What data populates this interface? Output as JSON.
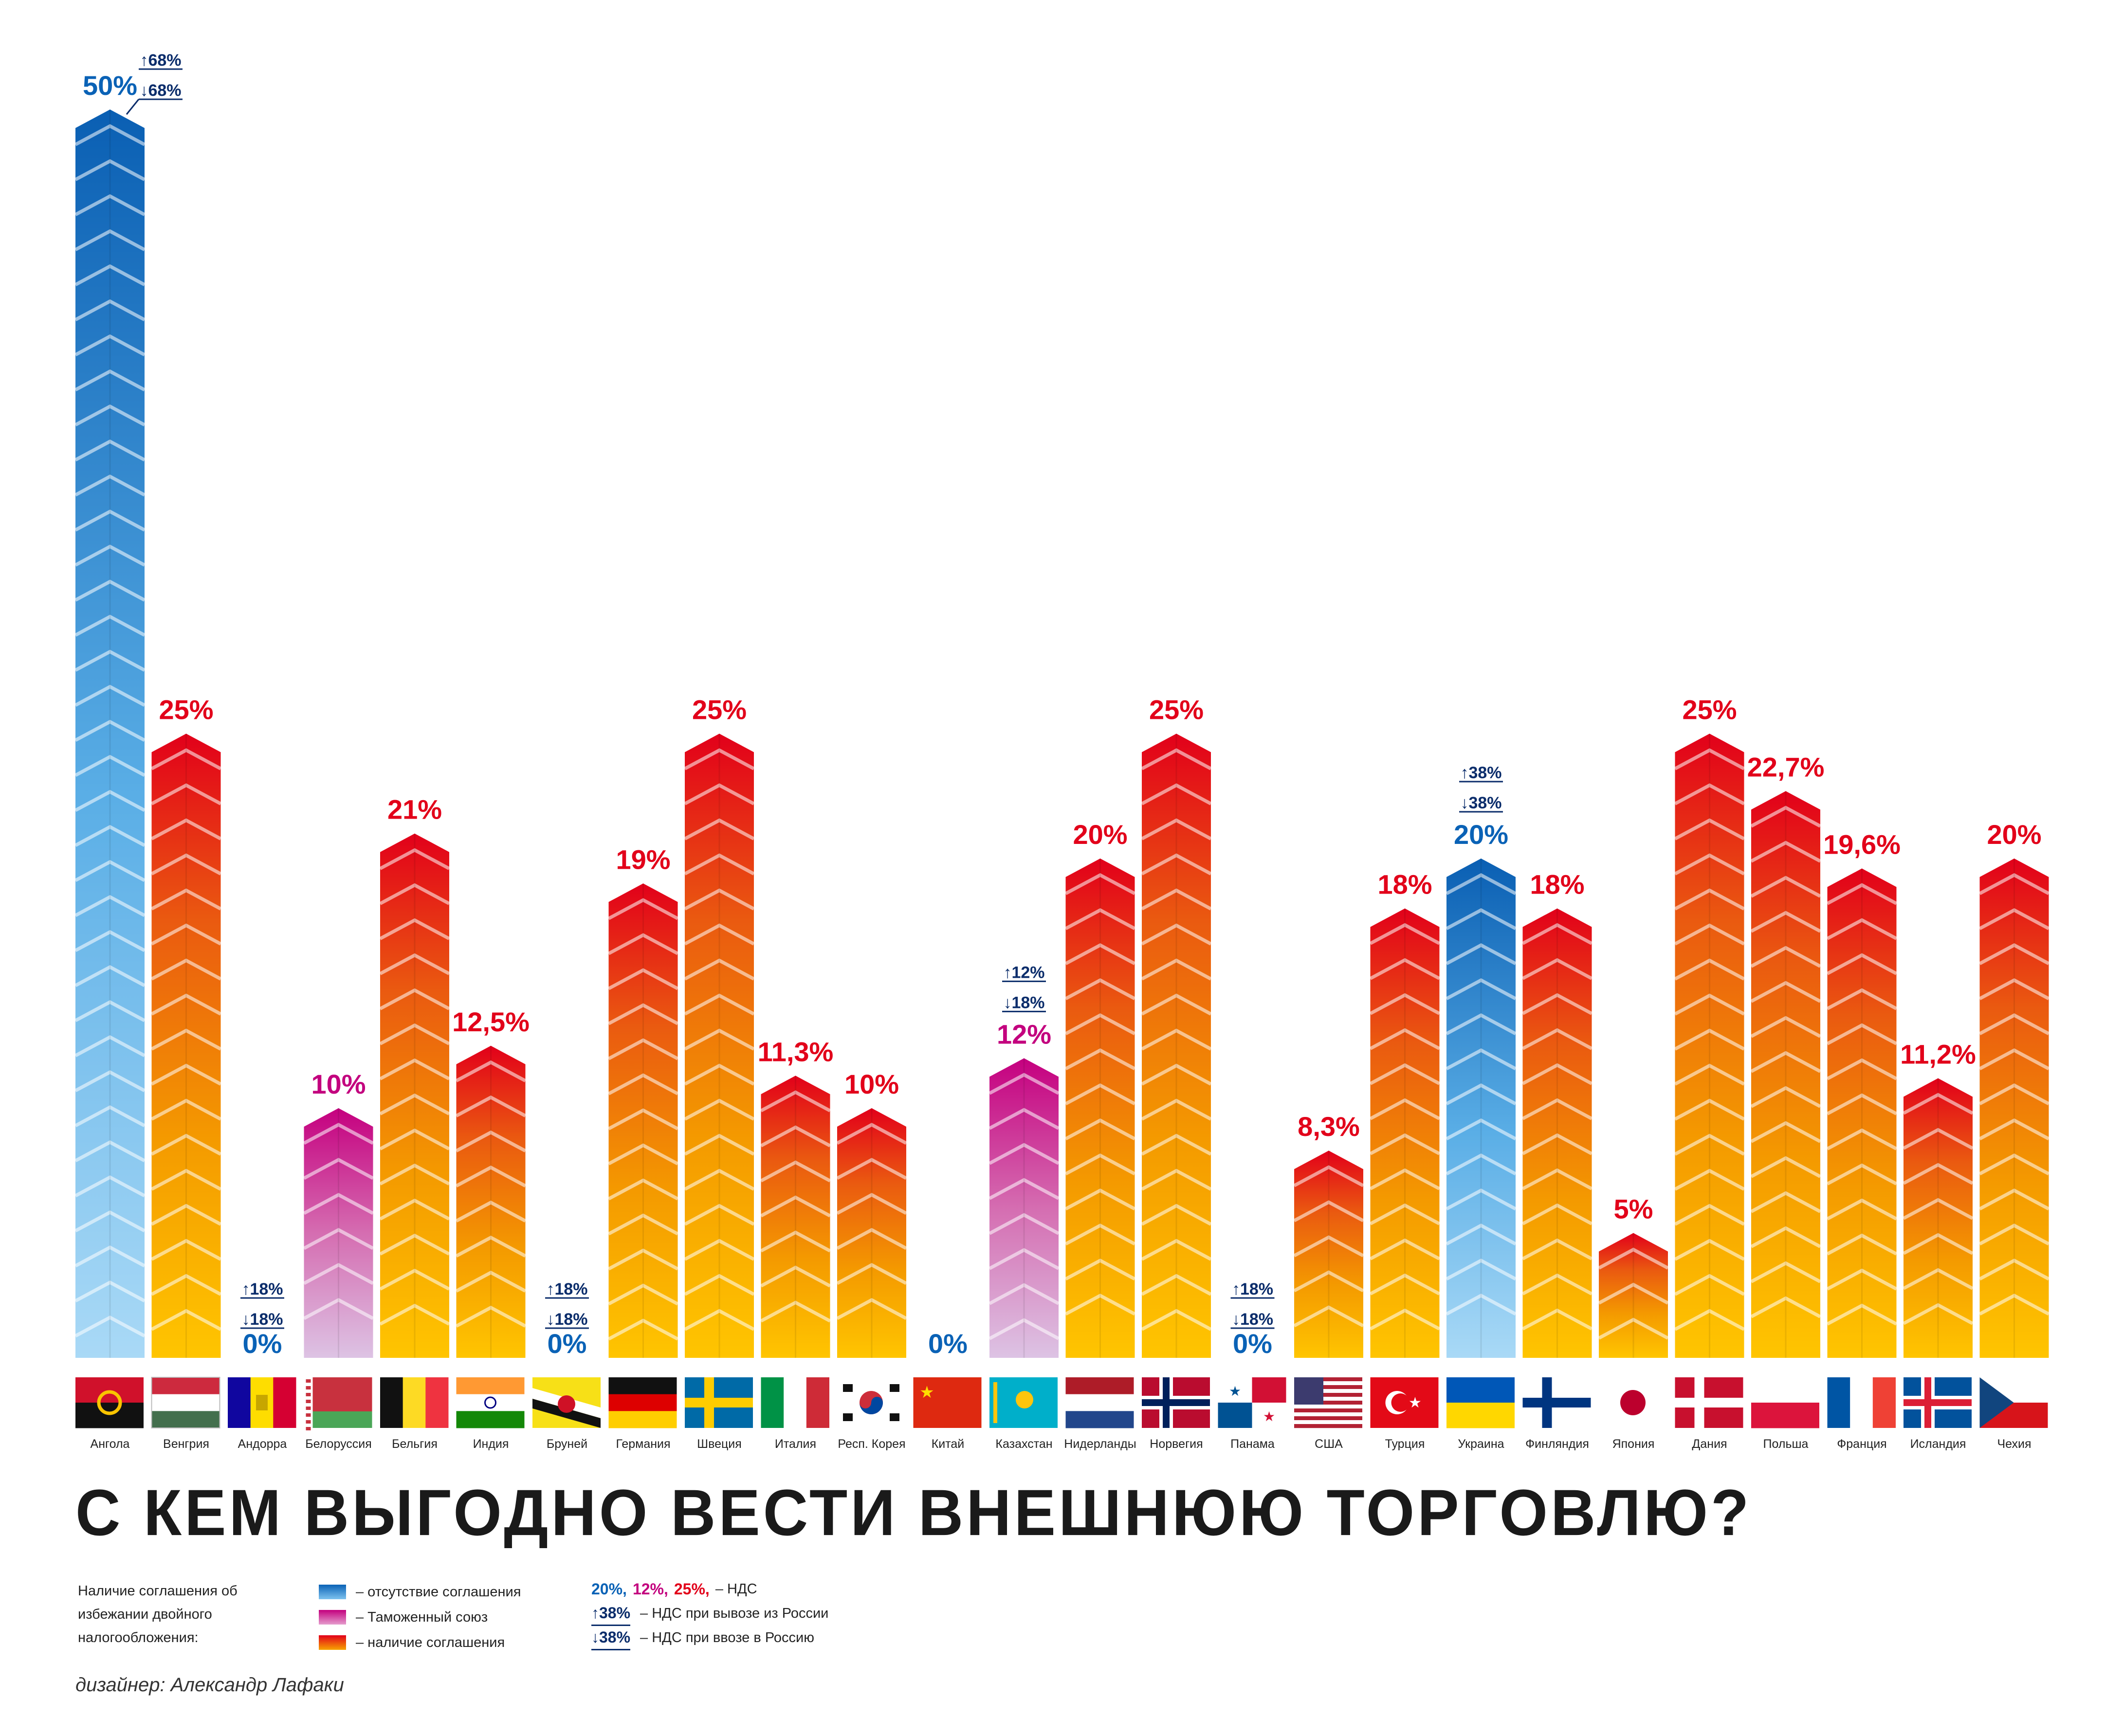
{
  "title": "С КЕМ ВЫГОДНО ВЕСТИ ВНЕШНЮЮ ТОРГОВЛЮ?",
  "designer": "дизайнер: Александр Лафаки",
  "legend": {
    "intro": "Наличие соглашения об избежании двойного налогообложения:",
    "types": [
      {
        "key": "none",
        "label": "– отсутствие соглашения",
        "color": "#0a62b6"
      },
      {
        "key": "union",
        "label": "– Таможенный союз",
        "color": "#c3007e"
      },
      {
        "key": "agreement",
        "label": "– наличие соглашения",
        "color": "#e2001a"
      }
    ],
    "vat_samples": [
      "20%,",
      "12%,",
      "25%,"
    ],
    "vat_label": "– НДС",
    "export_sample": "38%",
    "export_label": "– НДС при вывозе из России",
    "import_sample": "38%",
    "import_label": "– НДС при ввозе в Россию"
  },
  "chart_data": {
    "type": "bar",
    "title": "С КЕМ ВЫГОДНО ВЕСТИ ВНЕШНЮЮ ТОРГОВЛЮ?",
    "ylim": [
      0,
      50
    ],
    "unit": "%",
    "categories": [
      "Ангола",
      "Венгрия",
      "Андорра",
      "Белоруссия",
      "Бельгия",
      "Индия",
      "Бруней",
      "Германия",
      "Швеция",
      "Италия",
      "Респ. Корея",
      "Китай",
      "Казахстан",
      "Нидерланды",
      "Норвегия",
      "Панама",
      "США",
      "Турция",
      "Украина",
      "Финляндия",
      "Япония",
      "Дания",
      "Польша",
      "Франция",
      "Исландия",
      "Чехия"
    ],
    "values": [
      50,
      25,
      0,
      10,
      21,
      12.5,
      0,
      19,
      25,
      11.3,
      10,
      0,
      12,
      20,
      25,
      0,
      8.3,
      18,
      20,
      18,
      5,
      25,
      22.7,
      19.6,
      11.2,
      20
    ],
    "labels": [
      "50%",
      "25%",
      "0%",
      "10%",
      "21%",
      "12,5%",
      "0%",
      "19%",
      "25%",
      "11,3%",
      "10%",
      "0%",
      "12%",
      "20%",
      "25%",
      "0%",
      "8,3%",
      "18%",
      "20%",
      "18%",
      "5%",
      "25%",
      "22,7%",
      "19,6%",
      "11,2%",
      "20%"
    ],
    "agreement": [
      "none",
      "agreement",
      "agreement",
      "union",
      "agreement",
      "agreement",
      "agreement",
      "agreement",
      "agreement",
      "agreement",
      "agreement",
      "agreement",
      "union",
      "agreement",
      "agreement",
      "agreement",
      "agreement",
      "agreement",
      "none",
      "agreement",
      "agreement",
      "agreement",
      "agreement",
      "agreement",
      "agreement",
      "agreement"
    ],
    "annotations": [
      {
        "country": "Ангола",
        "export": "68%",
        "import": "68%"
      },
      {
        "country": "Андорра",
        "export": "18%",
        "import": "18%"
      },
      {
        "country": "Бруней",
        "export": "18%",
        "import": "18%"
      },
      {
        "country": "Казахстан",
        "export": "12%",
        "import": "18%"
      },
      {
        "country": "Панама",
        "export": "18%",
        "import": "18%"
      },
      {
        "country": "Украина",
        "export": "38%",
        "import": "38%"
      }
    ],
    "flags": [
      "angola",
      "hungary",
      "andorra",
      "belarus",
      "belgium",
      "india",
      "brunei",
      "germany",
      "sweden",
      "italy",
      "korea",
      "china",
      "kazakhstan",
      "netherlands",
      "norway",
      "panama",
      "usa",
      "turkey",
      "ukraine",
      "finland",
      "japan",
      "denmark",
      "poland",
      "france",
      "iceland",
      "czech"
    ]
  }
}
